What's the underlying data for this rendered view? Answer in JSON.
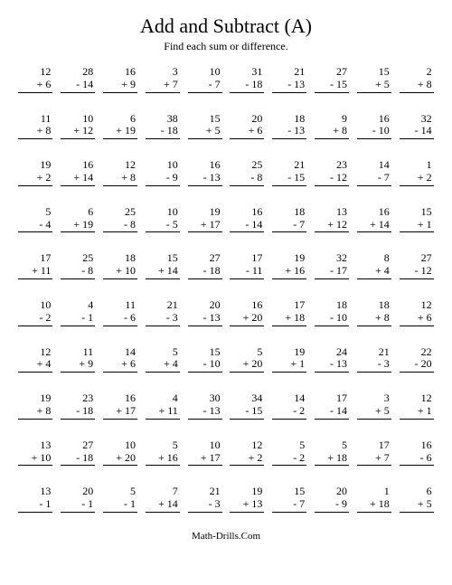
{
  "title": "Add and Subtract (A)",
  "subtitle": "Find each sum or difference.",
  "footer": "Math-Drills.Com",
  "font_family": "Times New Roman",
  "title_fontsize": 22,
  "subtitle_fontsize": 12,
  "problem_fontsize": 12,
  "columns": 10,
  "rows": 10,
  "background_color": "#ffffff",
  "text_color": "#000000",
  "problems": [
    {
      "a": 12,
      "op": "+",
      "b": 6
    },
    {
      "a": 28,
      "op": "-",
      "b": 14
    },
    {
      "a": 16,
      "op": "+",
      "b": 9
    },
    {
      "a": 3,
      "op": "+",
      "b": 7
    },
    {
      "a": 10,
      "op": "-",
      "b": 7
    },
    {
      "a": 31,
      "op": "-",
      "b": 18
    },
    {
      "a": 21,
      "op": "-",
      "b": 13
    },
    {
      "a": 27,
      "op": "-",
      "b": 15
    },
    {
      "a": 15,
      "op": "+",
      "b": 5
    },
    {
      "a": 2,
      "op": "+",
      "b": 8
    },
    {
      "a": 11,
      "op": "+",
      "b": 8
    },
    {
      "a": 10,
      "op": "+",
      "b": 12
    },
    {
      "a": 6,
      "op": "+",
      "b": 19
    },
    {
      "a": 38,
      "op": "-",
      "b": 18
    },
    {
      "a": 15,
      "op": "+",
      "b": 5
    },
    {
      "a": 20,
      "op": "+",
      "b": 6
    },
    {
      "a": 18,
      "op": "-",
      "b": 13
    },
    {
      "a": 9,
      "op": "+",
      "b": 8
    },
    {
      "a": 16,
      "op": "-",
      "b": 10
    },
    {
      "a": 32,
      "op": "-",
      "b": 14
    },
    {
      "a": 19,
      "op": "+",
      "b": 2
    },
    {
      "a": 16,
      "op": "+",
      "b": 14
    },
    {
      "a": 12,
      "op": "+",
      "b": 8
    },
    {
      "a": 10,
      "op": "-",
      "b": 9
    },
    {
      "a": 16,
      "op": "-",
      "b": 13
    },
    {
      "a": 25,
      "op": "-",
      "b": 8
    },
    {
      "a": 21,
      "op": "-",
      "b": 15
    },
    {
      "a": 23,
      "op": "-",
      "b": 12
    },
    {
      "a": 14,
      "op": "-",
      "b": 7
    },
    {
      "a": 1,
      "op": "+",
      "b": 2
    },
    {
      "a": 5,
      "op": "-",
      "b": 4
    },
    {
      "a": 6,
      "op": "+",
      "b": 19
    },
    {
      "a": 25,
      "op": "-",
      "b": 8
    },
    {
      "a": 10,
      "op": "-",
      "b": 5
    },
    {
      "a": 19,
      "op": "+",
      "b": 17
    },
    {
      "a": 16,
      "op": "-",
      "b": 14
    },
    {
      "a": 18,
      "op": "-",
      "b": 7
    },
    {
      "a": 13,
      "op": "+",
      "b": 12
    },
    {
      "a": 16,
      "op": "+",
      "b": 14
    },
    {
      "a": 15,
      "op": "+",
      "b": 1
    },
    {
      "a": 17,
      "op": "+",
      "b": 11
    },
    {
      "a": 25,
      "op": "-",
      "b": 8
    },
    {
      "a": 18,
      "op": "+",
      "b": 10
    },
    {
      "a": 15,
      "op": "+",
      "b": 14
    },
    {
      "a": 27,
      "op": "-",
      "b": 18
    },
    {
      "a": 17,
      "op": "-",
      "b": 11
    },
    {
      "a": 19,
      "op": "+",
      "b": 16
    },
    {
      "a": 32,
      "op": "-",
      "b": 17
    },
    {
      "a": 8,
      "op": "+",
      "b": 4
    },
    {
      "a": 27,
      "op": "-",
      "b": 12
    },
    {
      "a": 10,
      "op": "-",
      "b": 2
    },
    {
      "a": 4,
      "op": "-",
      "b": 1
    },
    {
      "a": 11,
      "op": "-",
      "b": 6
    },
    {
      "a": 21,
      "op": "-",
      "b": 3
    },
    {
      "a": 20,
      "op": "-",
      "b": 13
    },
    {
      "a": 16,
      "op": "+",
      "b": 20
    },
    {
      "a": 17,
      "op": "+",
      "b": 18
    },
    {
      "a": 18,
      "op": "-",
      "b": 10
    },
    {
      "a": 18,
      "op": "+",
      "b": 8
    },
    {
      "a": 12,
      "op": "+",
      "b": 6
    },
    {
      "a": 12,
      "op": "+",
      "b": 4
    },
    {
      "a": 11,
      "op": "+",
      "b": 9
    },
    {
      "a": 14,
      "op": "+",
      "b": 6
    },
    {
      "a": 5,
      "op": "+",
      "b": 4
    },
    {
      "a": 15,
      "op": "-",
      "b": 10
    },
    {
      "a": 5,
      "op": "+",
      "b": 20
    },
    {
      "a": 19,
      "op": "+",
      "b": 1
    },
    {
      "a": 24,
      "op": "-",
      "b": 13
    },
    {
      "a": 21,
      "op": "-",
      "b": 3
    },
    {
      "a": 22,
      "op": "-",
      "b": 20
    },
    {
      "a": 19,
      "op": "+",
      "b": 8
    },
    {
      "a": 23,
      "op": "-",
      "b": 18
    },
    {
      "a": 16,
      "op": "+",
      "b": 17
    },
    {
      "a": 4,
      "op": "+",
      "b": 11
    },
    {
      "a": 30,
      "op": "-",
      "b": 13
    },
    {
      "a": 34,
      "op": "-",
      "b": 15
    },
    {
      "a": 14,
      "op": "-",
      "b": 2
    },
    {
      "a": 17,
      "op": "-",
      "b": 14
    },
    {
      "a": 3,
      "op": "+",
      "b": 5
    },
    {
      "a": 12,
      "op": "+",
      "b": 1
    },
    {
      "a": 13,
      "op": "+",
      "b": 10
    },
    {
      "a": 27,
      "op": "-",
      "b": 18
    },
    {
      "a": 10,
      "op": "+",
      "b": 20
    },
    {
      "a": 5,
      "op": "+",
      "b": 16
    },
    {
      "a": 10,
      "op": "+",
      "b": 17
    },
    {
      "a": 12,
      "op": "+",
      "b": 2
    },
    {
      "a": 5,
      "op": "-",
      "b": 2
    },
    {
      "a": 5,
      "op": "+",
      "b": 18
    },
    {
      "a": 17,
      "op": "+",
      "b": 7
    },
    {
      "a": 16,
      "op": "-",
      "b": 6
    },
    {
      "a": 13,
      "op": "-",
      "b": 1
    },
    {
      "a": 20,
      "op": "-",
      "b": 1
    },
    {
      "a": 5,
      "op": "-",
      "b": 1
    },
    {
      "a": 7,
      "op": "+",
      "b": 14
    },
    {
      "a": 21,
      "op": "-",
      "b": 3
    },
    {
      "a": 19,
      "op": "+",
      "b": 13
    },
    {
      "a": 15,
      "op": "-",
      "b": 7
    },
    {
      "a": 20,
      "op": "-",
      "b": 9
    },
    {
      "a": 1,
      "op": "+",
      "b": 18
    },
    {
      "a": 6,
      "op": "+",
      "b": 5
    }
  ]
}
